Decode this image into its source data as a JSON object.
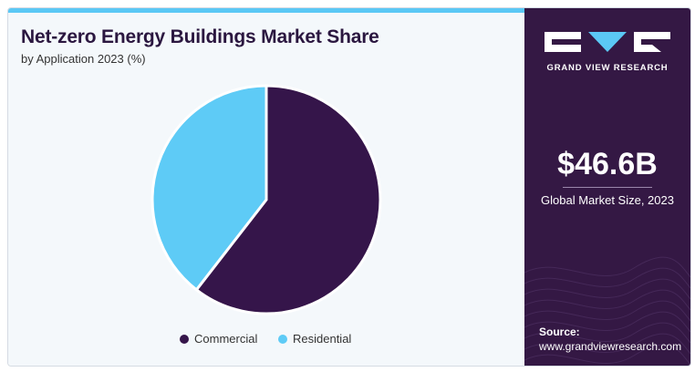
{
  "title": "Net-zero Energy Buildings Market Share",
  "subtitle": "by Application 2023 (%)",
  "colors": {
    "commercial": "#35154a",
    "residential": "#5ecbf6",
    "panel": "#341844",
    "accent": "#5bc8f5"
  },
  "chart_data": {
    "type": "pie",
    "title": "Net-zero Energy Buildings Market Share",
    "subtitle": "by Application 2023 (%)",
    "slices": [
      {
        "label": "Commercial",
        "value": 60.5,
        "color": "#35154a"
      },
      {
        "label": "Residential",
        "value": 39.5,
        "color": "#5ecbf6"
      }
    ],
    "legend_position": "bottom"
  },
  "legend": {
    "commercial": "Commercial",
    "residential": "Residential"
  },
  "sidebar": {
    "brand": "GRAND VIEW RESEARCH",
    "market_size": "$46.6B",
    "market_size_label": "Global Market Size, 2023",
    "source_label": "Source:",
    "source_url": "www.grandviewresearch.com"
  }
}
